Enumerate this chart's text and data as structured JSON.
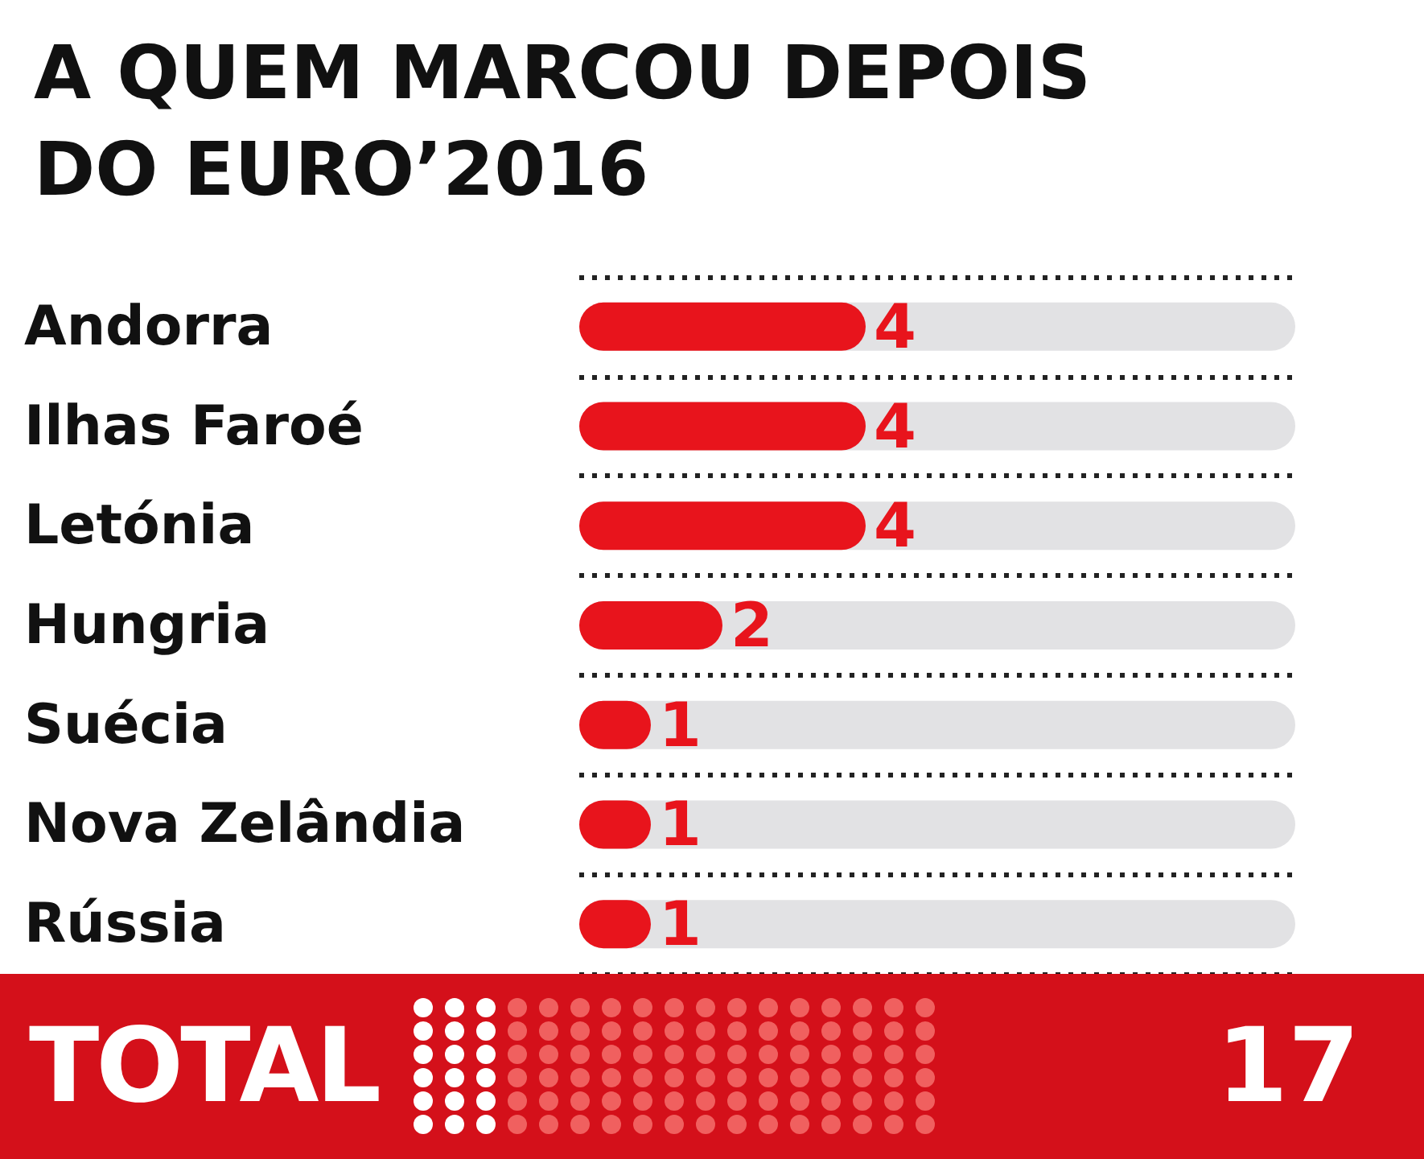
{
  "chart_data": {
    "type": "bar",
    "orientation": "horizontal",
    "title": "A QUEM MARCOU DEPOIS\nDO EURO’2016",
    "categories": [
      "Andorra",
      "Ilhas Faroé",
      "Letónia",
      "Hungria",
      "Suécia",
      "Nova Zelândia",
      "Rússia"
    ],
    "values": [
      4,
      4,
      4,
      2,
      1,
      1,
      1
    ],
    "color": "#e8141c",
    "xlim": [
      0,
      10
    ],
    "data_labels": true,
    "grid": "y",
    "annotations": [
      "TOTAL",
      "17"
    ]
  }
}
